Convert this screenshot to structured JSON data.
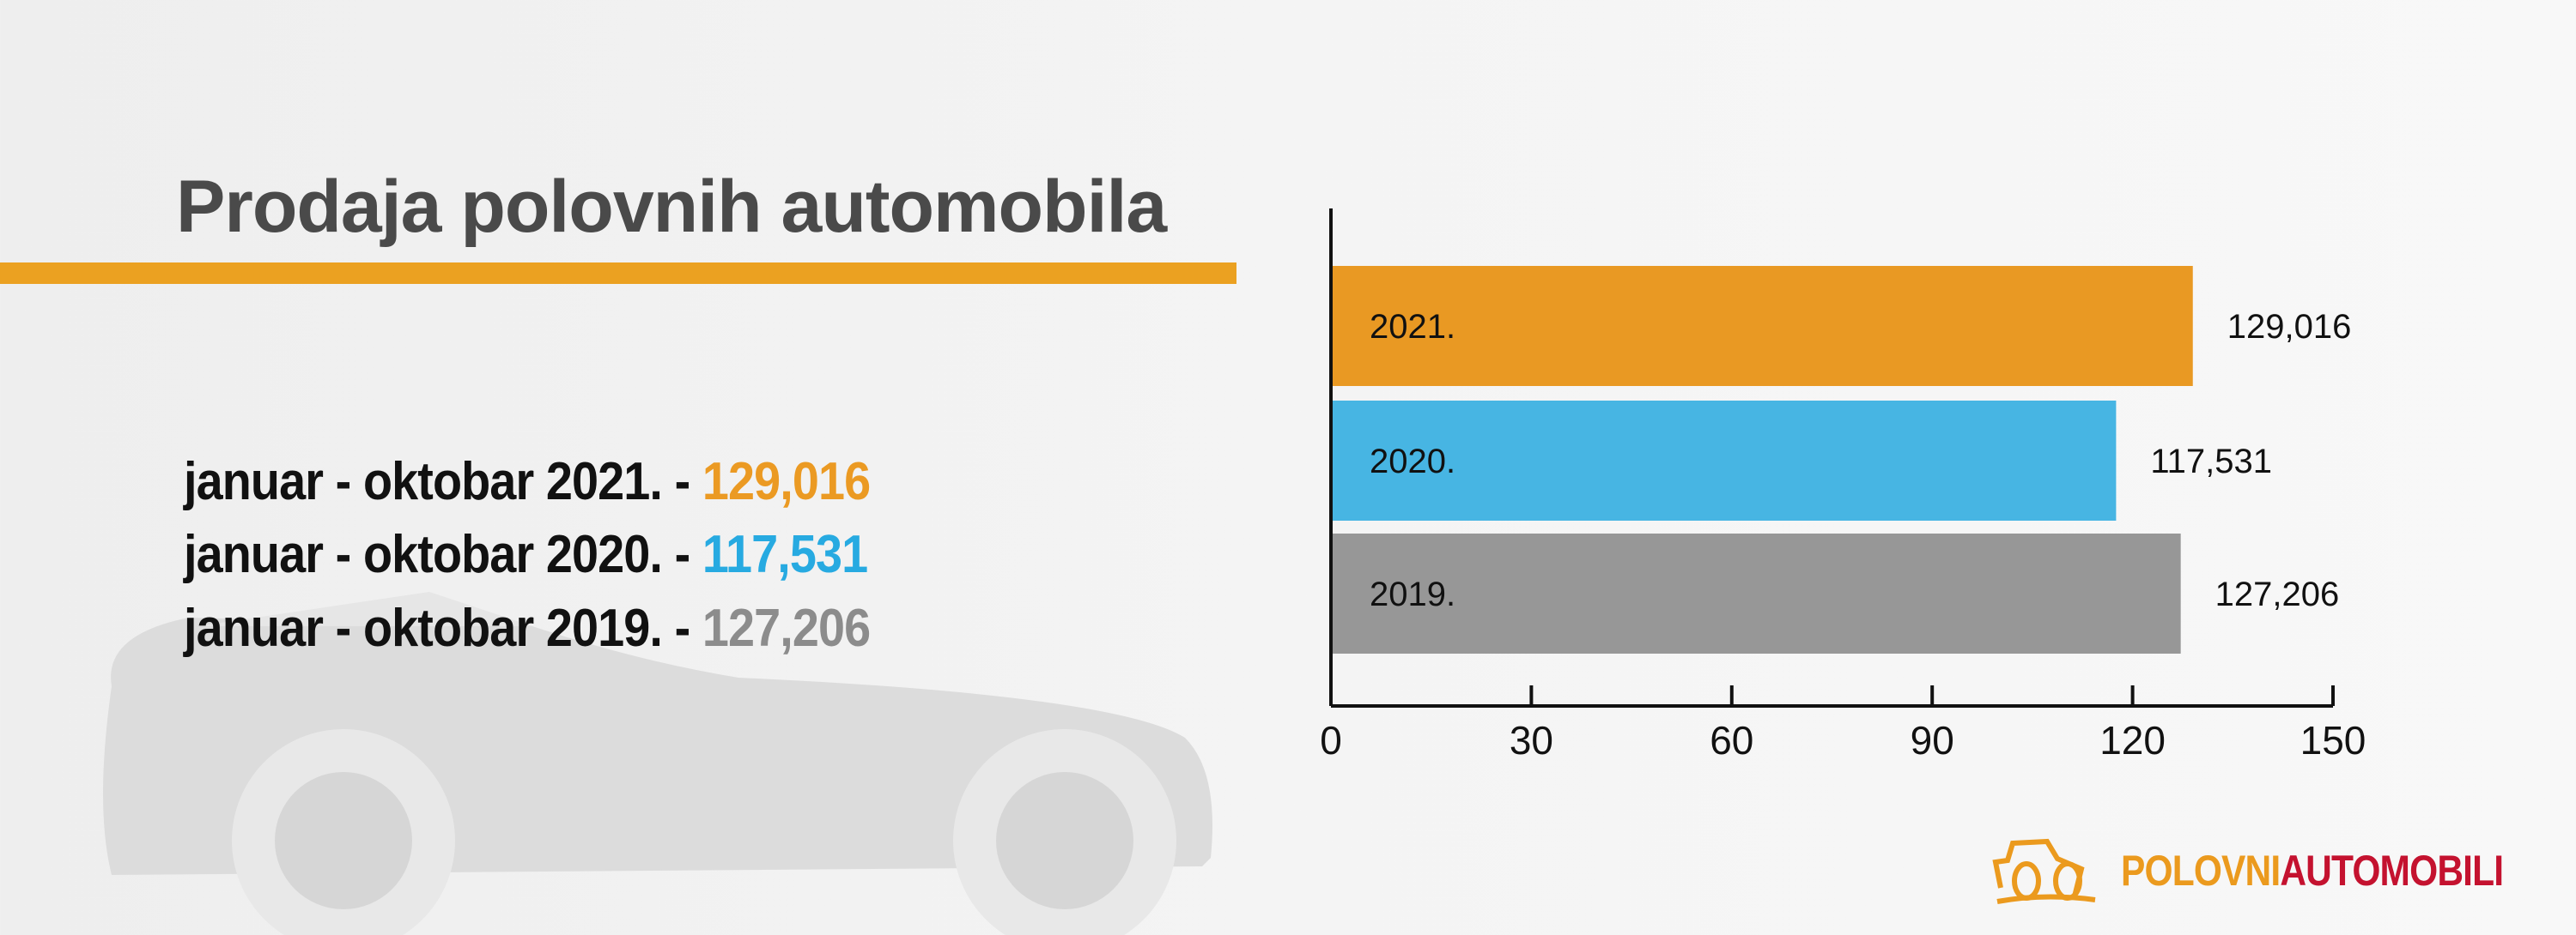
{
  "title": "Prodaja polovnih automobila",
  "summary": [
    {
      "label": "januar - oktobar 2021. - ",
      "value": "129,016",
      "color": "#eb9a23"
    },
    {
      "label": "januar - oktobar 2020. - ",
      "value": "117,531",
      "color": "#27aae1"
    },
    {
      "label": "januar - oktobar 2019. - ",
      "value": "127,206",
      "color": "#8c8c8c"
    }
  ],
  "chart_data": {
    "type": "bar",
    "orientation": "horizontal",
    "categories": [
      "2021.",
      "2020.",
      "2019."
    ],
    "values": [
      129.016,
      117.531,
      127.206
    ],
    "data_labels": [
      "129,016",
      "117,531",
      "127,206"
    ],
    "colors": [
      "#e99923",
      "#47b5e3",
      "#979797"
    ],
    "xlim": [
      0,
      150
    ],
    "xticks": [
      "0",
      "30",
      "60",
      "90",
      "120",
      "150"
    ],
    "grid": false
  },
  "logo": {
    "part1": "POLOVNI",
    "part2": "AUTOMOBILI",
    "color1": "#eb9a1e",
    "color2": "#c4122f"
  }
}
